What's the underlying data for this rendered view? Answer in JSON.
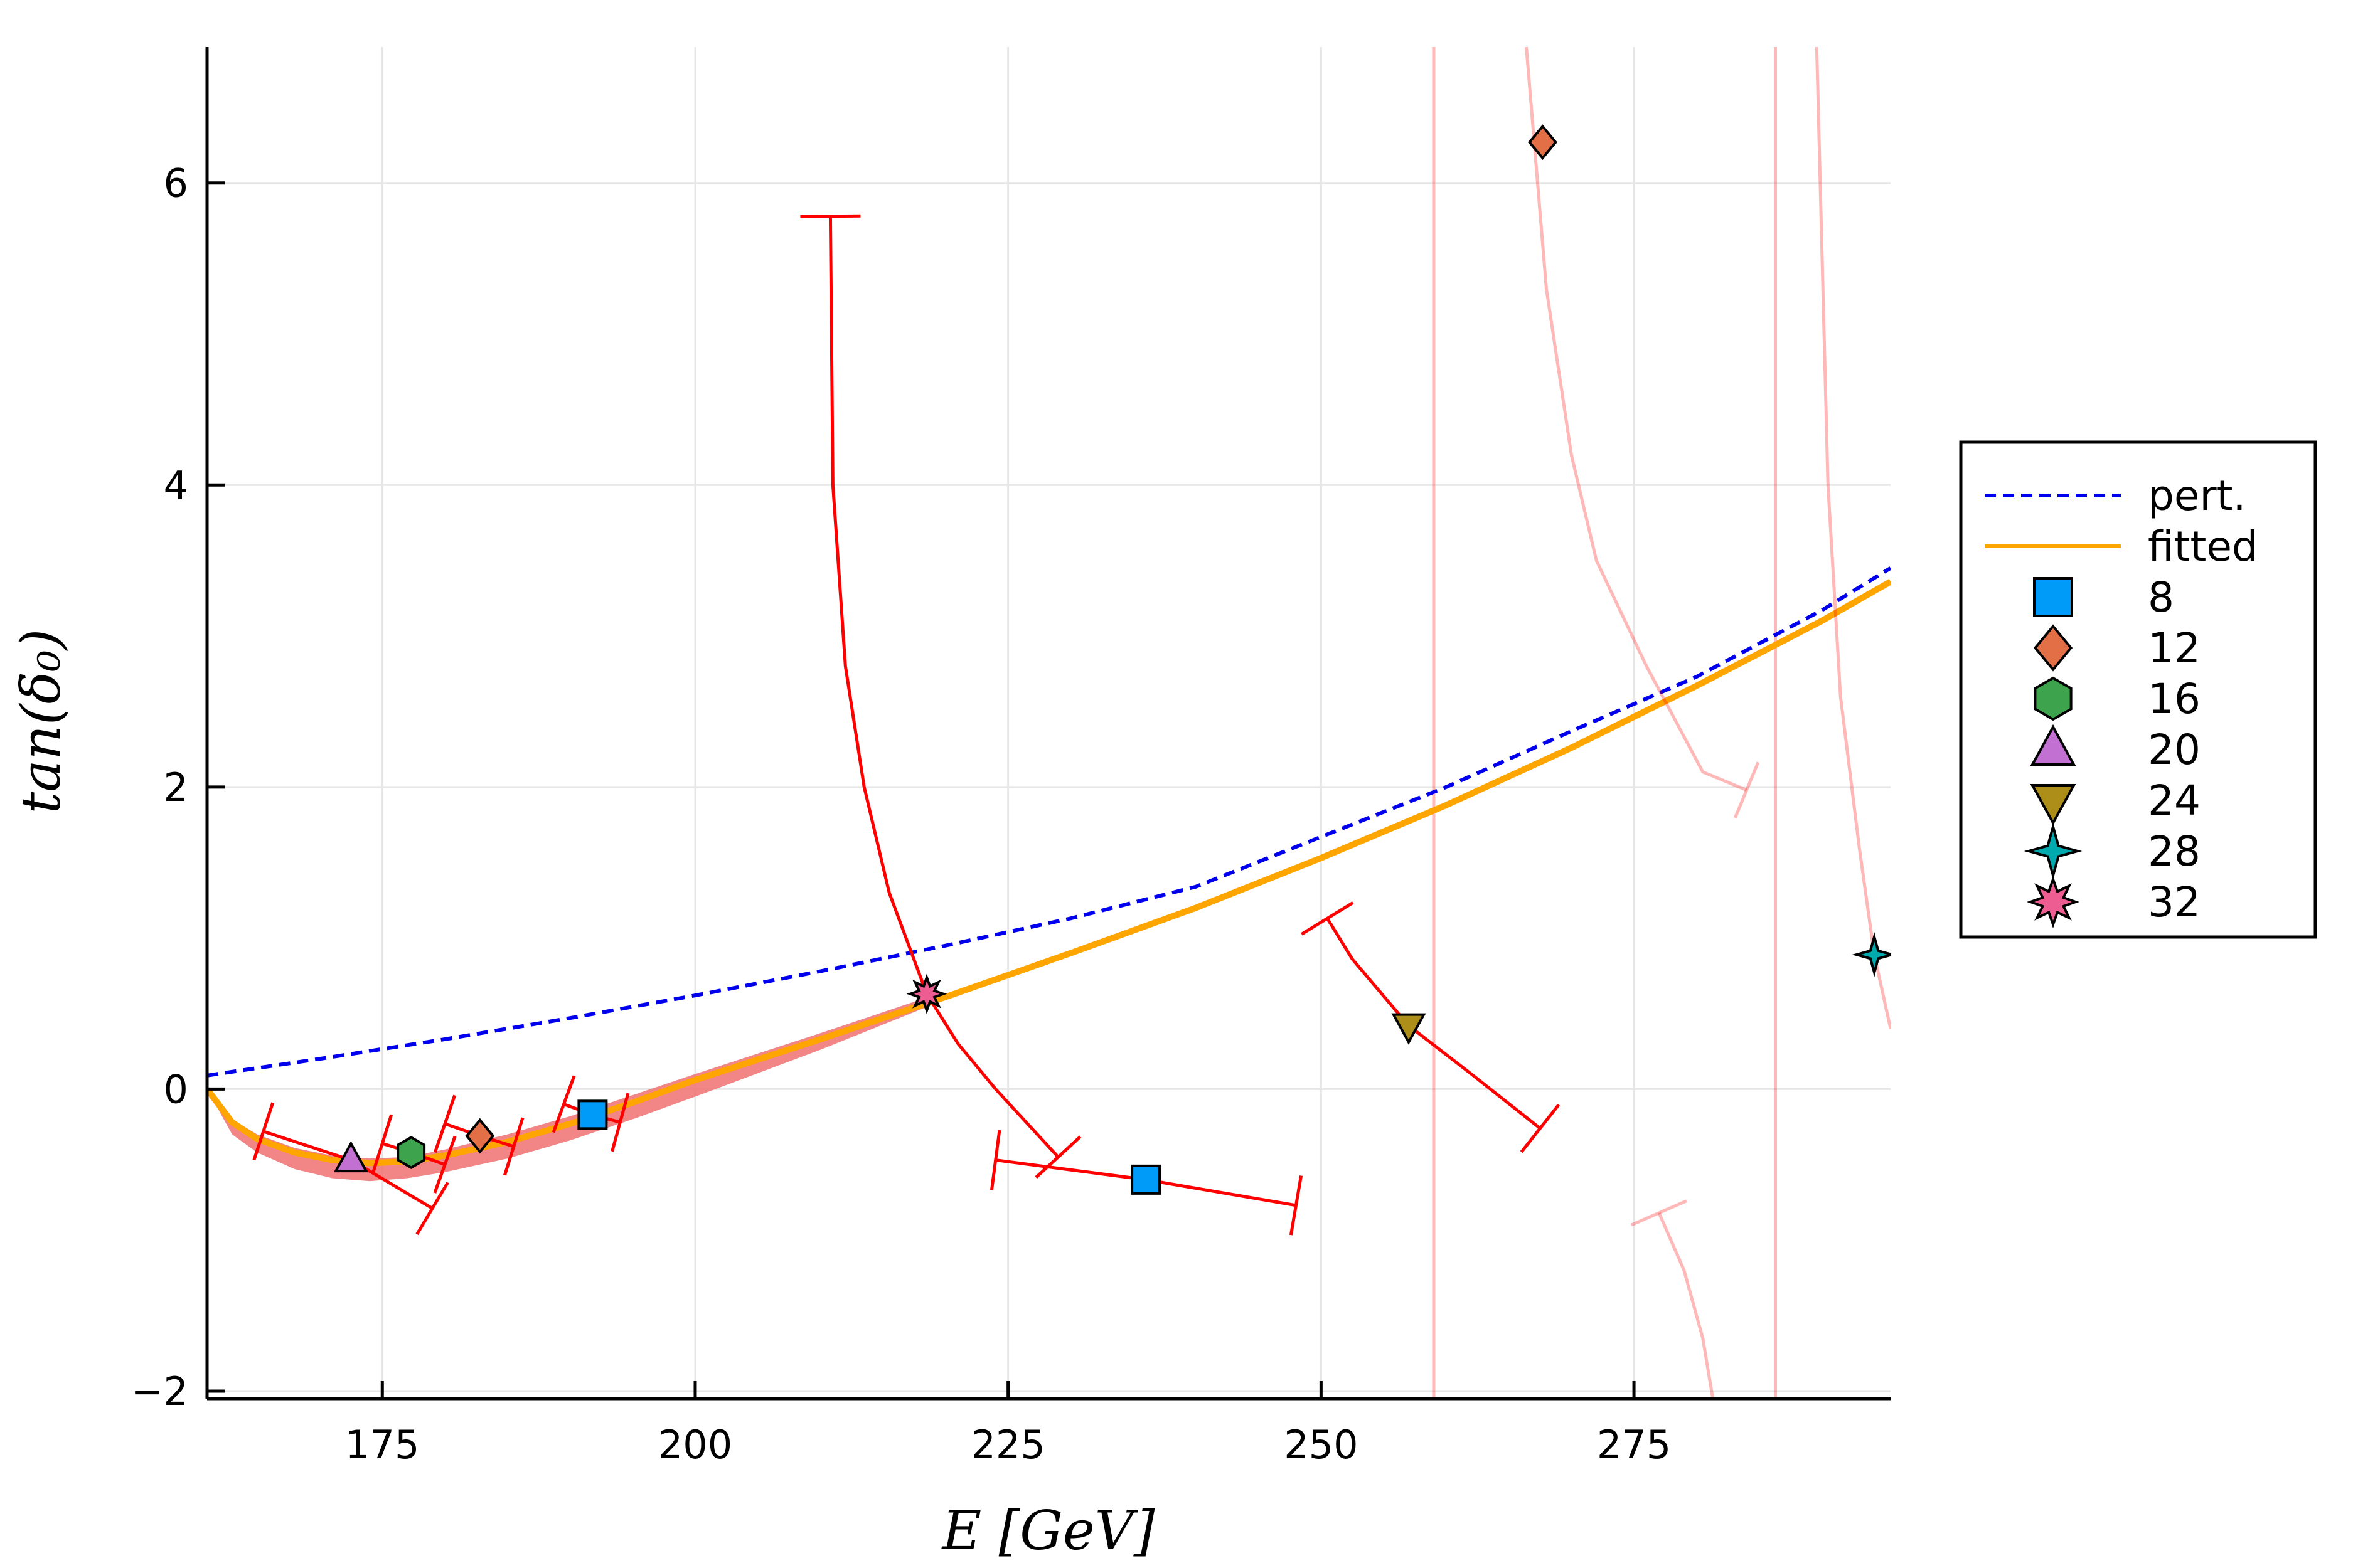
{
  "chart_data": {
    "type": "scatter",
    "xlabel": "E [GeV]",
    "ylabel": "tan(δ₀)",
    "xlim": [
      161,
      295.5
    ],
    "ylim": [
      -2.05,
      6.9
    ],
    "xticks": [
      175,
      200,
      225,
      250,
      275
    ],
    "yticks": [
      -2,
      0,
      2,
      4,
      6
    ],
    "x_tick_labels": [
      "175",
      "200",
      "225",
      "250",
      "275"
    ],
    "y_tick_labels": [
      "−2",
      "0",
      "2",
      "4",
      "6"
    ],
    "grid": true,
    "legend_position": "right",
    "lines": [
      {
        "name": "pert.",
        "style": "dashed",
        "color": "#0000ee",
        "x": [
          161,
          170,
          180,
          190,
          200,
          210,
          220,
          230,
          240,
          250,
          260,
          270,
          280,
          290,
          295.5
        ],
        "y": [
          0.09,
          0.2,
          0.33,
          0.47,
          0.62,
          0.78,
          0.95,
          1.13,
          1.34,
          1.67,
          2.0,
          2.37,
          2.73,
          3.17,
          3.45
        ]
      },
      {
        "name": "fitted",
        "style": "solid",
        "color": "#ffa500",
        "x": [
          161,
          163,
          165,
          168,
          171,
          174,
          177,
          180,
          185,
          190,
          195,
          200,
          210,
          220,
          230,
          240,
          250,
          260,
          270,
          280,
          290,
          295.5
        ],
        "y": [
          0.0,
          -0.22,
          -0.33,
          -0.42,
          -0.47,
          -0.49,
          -0.48,
          -0.44,
          -0.35,
          -0.23,
          -0.09,
          0.06,
          0.33,
          0.61,
          0.9,
          1.2,
          1.53,
          1.88,
          2.26,
          2.67,
          3.1,
          3.36
        ]
      }
    ],
    "band": {
      "color": "#f07070",
      "x": [
        161,
        163,
        165,
        168,
        171,
        174,
        177,
        180,
        185,
        190,
        195,
        200,
        210,
        219
      ],
      "upper": [
        0.0,
        -0.2,
        -0.3,
        -0.39,
        -0.44,
        -0.46,
        -0.45,
        -0.4,
        -0.3,
        -0.18,
        -0.04,
        0.1,
        0.37,
        0.62
      ],
      "lower": [
        0.0,
        -0.3,
        -0.42,
        -0.53,
        -0.59,
        -0.61,
        -0.59,
        -0.55,
        -0.46,
        -0.34,
        -0.2,
        -0.05,
        0.26,
        0.56
      ]
    },
    "series": [
      {
        "name": "8",
        "marker": "square",
        "color": "#009af9",
        "points": [
          {
            "x": 191.8,
            "y": -0.17
          },
          {
            "x": 236,
            "y": -0.6
          }
        ]
      },
      {
        "name": "12",
        "marker": "diamond",
        "color": "#e26f46",
        "points": [
          {
            "x": 182.8,
            "y": -0.31
          },
          {
            "x": 267.7,
            "y": 6.27
          }
        ]
      },
      {
        "name": "16",
        "marker": "hexagon",
        "color": "#3da44d",
        "points": [
          {
            "x": 177.3,
            "y": -0.42
          }
        ]
      },
      {
        "name": "20",
        "marker": "triangle-up",
        "color": "#c271d2",
        "points": [
          {
            "x": 172.5,
            "y": -0.47
          }
        ]
      },
      {
        "name": "24",
        "marker": "triangle-down",
        "color": "#ac8e18",
        "points": [
          {
            "x": 257,
            "y": 0.42
          }
        ]
      },
      {
        "name": "28",
        "marker": "star4",
        "color": "#00a9ad",
        "points": [
          {
            "x": 294.2,
            "y": 0.89
          }
        ]
      },
      {
        "name": "32",
        "marker": "star8",
        "color": "#ed5d92",
        "points": [
          {
            "x": 218.5,
            "y": 0.63
          }
        ]
      }
    ],
    "error_curves": [
      {
        "color": "#ff0000",
        "opacity": 1.0,
        "points": [
          [
            165.5,
            -0.28
          ],
          [
            172.5,
            -0.47
          ],
          [
            179,
            -0.79
          ]
        ],
        "caps": [
          [
            165.5,
            -0.28
          ],
          [
            179,
            -0.79
          ]
        ]
      },
      {
        "color": "#ff0000",
        "opacity": 1.0,
        "points": [
          [
            175,
            -0.36
          ],
          [
            177.3,
            -0.42
          ],
          [
            180,
            -0.5
          ]
        ],
        "caps": [
          [
            175,
            -0.36
          ],
          [
            180,
            -0.5
          ]
        ]
      },
      {
        "color": "#ff0000",
        "opacity": 1.0,
        "points": [
          [
            180,
            -0.23
          ],
          [
            182.8,
            -0.31
          ],
          [
            185.5,
            -0.38
          ]
        ],
        "caps": [
          [
            180,
            -0.23
          ],
          [
            185.5,
            -0.38
          ]
        ]
      },
      {
        "color": "#ff0000",
        "opacity": 1.0,
        "points": [
          [
            189.5,
            -0.1
          ],
          [
            191.8,
            -0.17
          ],
          [
            194,
            -0.22
          ]
        ],
        "caps": [
          [
            189.5,
            -0.1
          ],
          [
            194,
            -0.22
          ]
        ]
      },
      {
        "color": "#ff0000",
        "opacity": 1.0,
        "points": [
          [
            210.8,
            5.78
          ],
          [
            211,
            4.0
          ],
          [
            212,
            2.8
          ],
          [
            213.5,
            2.0
          ],
          [
            215.5,
            1.3
          ],
          [
            218.5,
            0.63
          ],
          [
            221,
            0.3
          ],
          [
            224,
            0.0
          ],
          [
            229,
            -0.45
          ]
        ],
        "caps": [
          [
            210.8,
            5.78
          ],
          [
            229,
            -0.45
          ]
        ]
      },
      {
        "color": "#ff0000",
        "opacity": 1.0,
        "points": [
          [
            224,
            -0.47
          ],
          [
            236,
            -0.6
          ],
          [
            248,
            -0.77
          ]
        ],
        "caps": [
          [
            224,
            -0.47
          ],
          [
            248,
            -0.77
          ]
        ]
      },
      {
        "color": "#ff0000",
        "opacity": 1.0,
        "points": [
          [
            250.5,
            1.13
          ],
          [
            252.5,
            0.86
          ],
          [
            257,
            0.42
          ],
          [
            262,
            0.1
          ],
          [
            267.5,
            -0.26
          ]
        ],
        "caps": [
          [
            250.5,
            1.13
          ],
          [
            267.5,
            -0.26
          ]
        ]
      },
      {
        "color": "#ff0000",
        "opacity": 0.28,
        "points": [
          [
            266.4,
            6.9
          ],
          [
            268,
            5.3
          ],
          [
            270,
            4.2
          ],
          [
            272,
            3.5
          ],
          [
            276,
            2.8
          ],
          [
            280.5,
            2.1
          ],
          [
            284,
            1.98
          ]
        ],
        "caps": [
          [
            284,
            1.98
          ]
        ]
      },
      {
        "color": "#ff0000",
        "opacity": 0.28,
        "points": [
          [
            289.6,
            6.9
          ],
          [
            290.5,
            4.0
          ],
          [
            291.5,
            2.6
          ],
          [
            293,
            1.6
          ],
          [
            294.2,
            0.89
          ],
          [
            295.5,
            0.4
          ]
        ],
        "caps": []
      },
      {
        "color": "#ff0000",
        "opacity": 0.28,
        "points": [
          [
            277,
            -0.82
          ],
          [
            279,
            -1.2
          ],
          [
            280.5,
            -1.65
          ],
          [
            281.3,
            -2.05
          ]
        ],
        "caps": [
          [
            277,
            -0.82
          ]
        ]
      }
    ],
    "vertical_lines": [
      {
        "x": 259,
        "color": "#ff0000",
        "opacity": 0.28
      },
      {
        "x": 286.3,
        "color": "#ff0000",
        "opacity": 0.28
      }
    ]
  }
}
